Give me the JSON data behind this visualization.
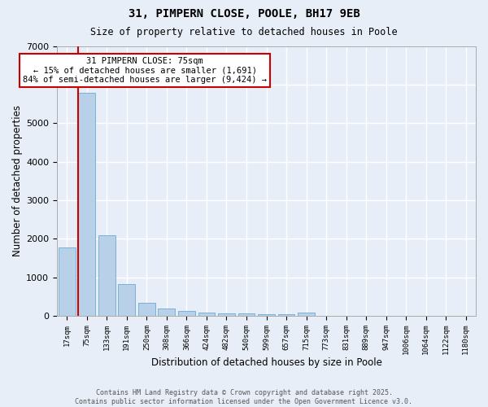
{
  "title": "31, PIMPERN CLOSE, POOLE, BH17 9EB",
  "subtitle": "Size of property relative to detached houses in Poole",
  "xlabel": "Distribution of detached houses by size in Poole",
  "ylabel": "Number of detached properties",
  "categories": [
    "17sqm",
    "75sqm",
    "133sqm",
    "191sqm",
    "250sqm",
    "308sqm",
    "366sqm",
    "424sqm",
    "482sqm",
    "540sqm",
    "599sqm",
    "657sqm",
    "715sqm",
    "773sqm",
    "831sqm",
    "889sqm",
    "947sqm",
    "1006sqm",
    "1064sqm",
    "1122sqm",
    "1180sqm"
  ],
  "values": [
    1780,
    5780,
    2090,
    820,
    340,
    200,
    120,
    90,
    70,
    55,
    45,
    35,
    75,
    0,
    0,
    0,
    0,
    0,
    0,
    0,
    0
  ],
  "bar_color": "#b8d0e8",
  "bar_edge_color": "#6aaad4",
  "highlight_index": 1,
  "highlight_line_color": "#cc0000",
  "annotation_text": "31 PIMPERN CLOSE: 75sqm\n← 15% of detached houses are smaller (1,691)\n84% of semi-detached houses are larger (9,424) →",
  "annotation_box_facecolor": "#ffffff",
  "annotation_box_edgecolor": "#cc0000",
  "ylim": [
    0,
    7000
  ],
  "yticks": [
    0,
    1000,
    2000,
    3000,
    4000,
    5000,
    6000,
    7000
  ],
  "background_color": "#e8eef8",
  "grid_color": "#ffffff",
  "footer_line1": "Contains HM Land Registry data © Crown copyright and database right 2025.",
  "footer_line2": "Contains public sector information licensed under the Open Government Licence v3.0."
}
